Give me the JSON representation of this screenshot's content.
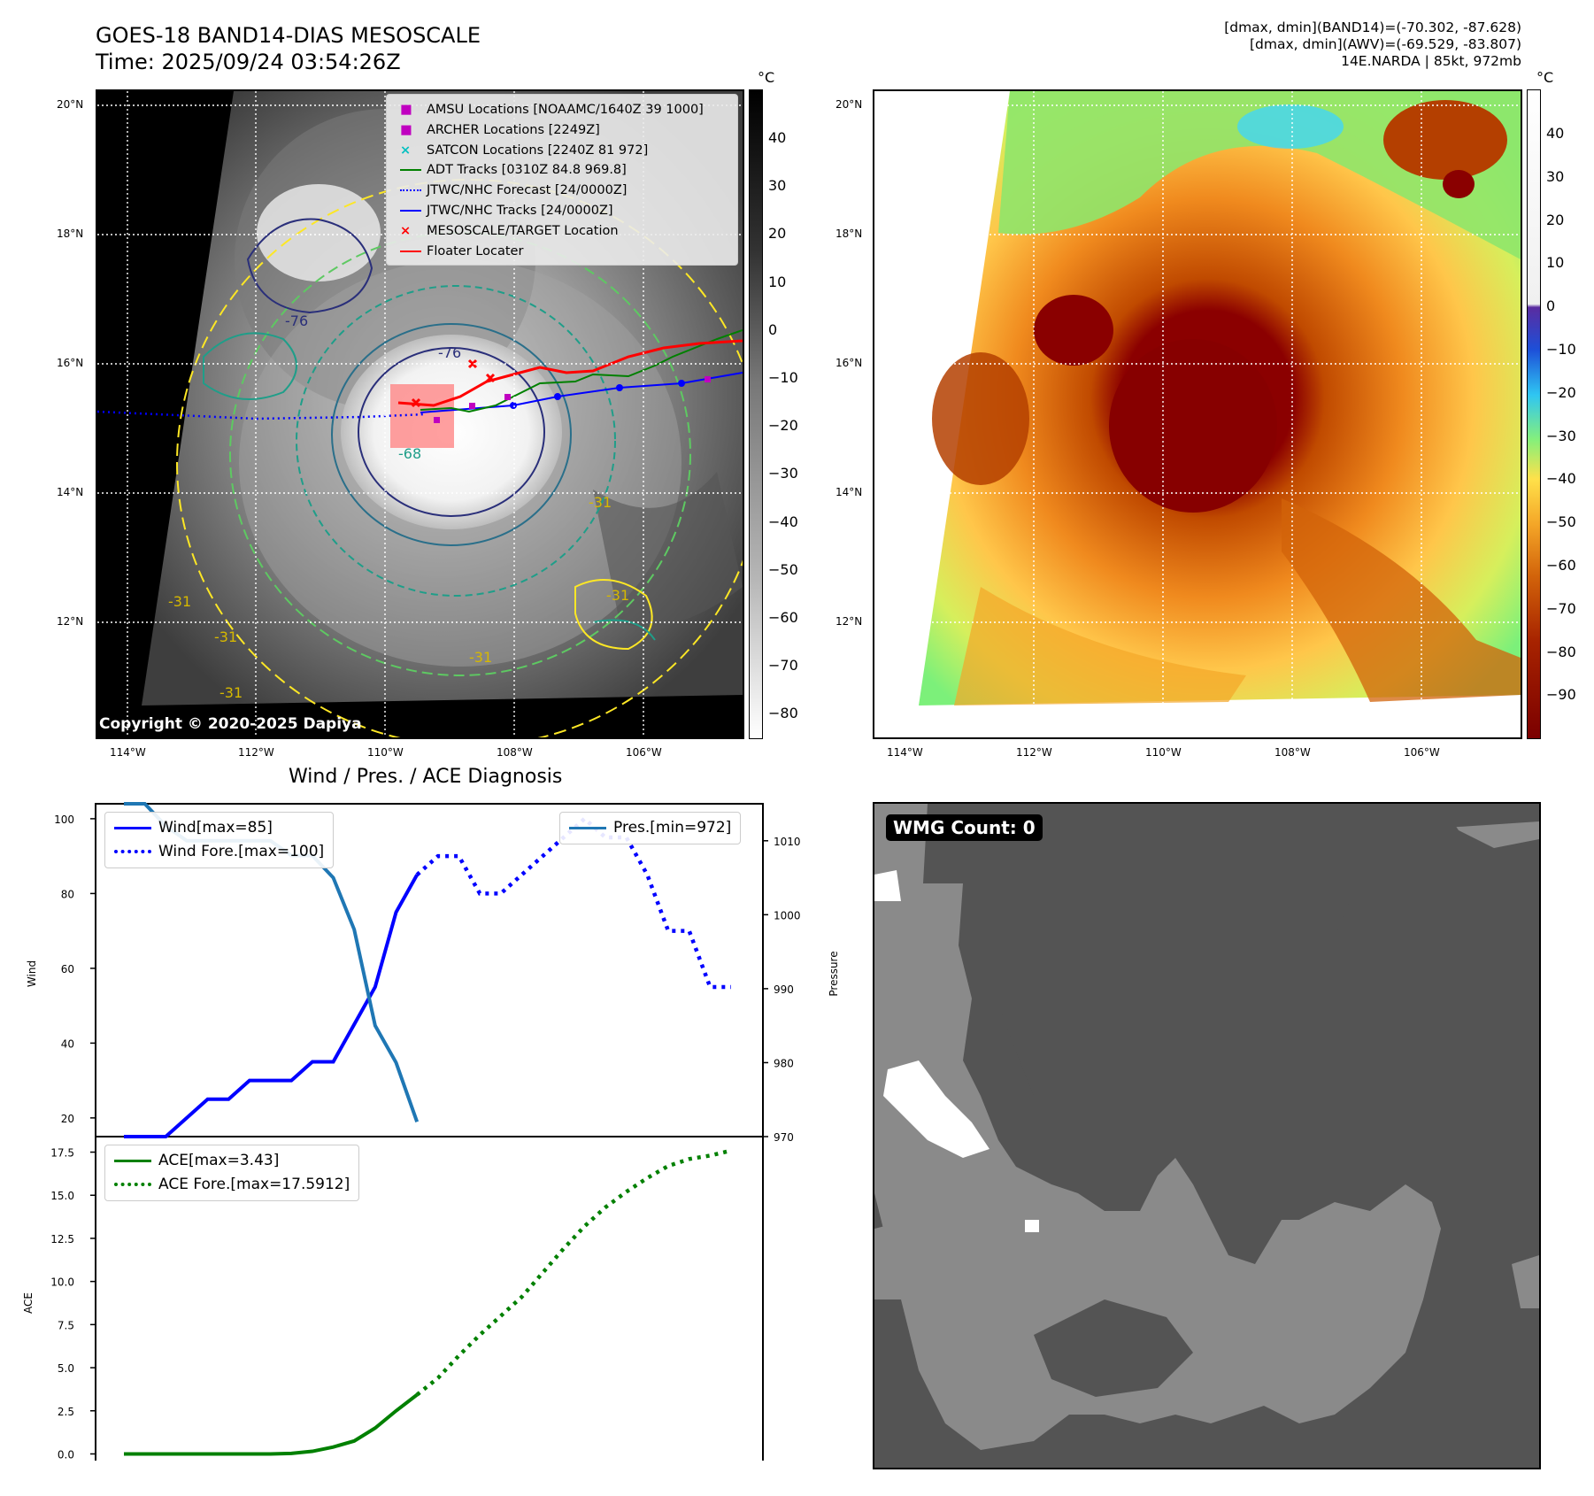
{
  "header": {
    "title": "GOES-18 BAND14-DIAS MESOSCALE",
    "time": "Time: 2025/09/24 03:54:26Z",
    "info_line1": "[dmax, dmin](BAND14)=(-70.302, -87.628)",
    "info_line2": "[dmax, dmin](AWV)=(-69.529, -83.807)",
    "info_line3": "14E.NARDA | 85kt, 972mb"
  },
  "map_axes": {
    "lat_labels": [
      "20°N",
      "18°N",
      "16°N",
      "14°N",
      "12°N"
    ],
    "lon_labels": [
      "114°W",
      "112°W",
      "110°W",
      "108°W",
      "106°W"
    ]
  },
  "ir_panel": {
    "copyright": "Copyright © 2020-2025 Dapiya",
    "colorbar_unit": "°C",
    "colorbar_ticks": [
      "40",
      "30",
      "20",
      "10",
      "0",
      "−10",
      "−20",
      "−30",
      "−40",
      "−50",
      "−60",
      "−70",
      "−80"
    ],
    "contour_labels": [
      "-76",
      "-76",
      "-31",
      "-31",
      "-31",
      "-31",
      "-31",
      "-31",
      "-68"
    ],
    "legend": [
      {
        "label": "AMSU Locations [NOAAMC/1640Z 39 1000]",
        "color": "#c000c0",
        "marker": "square"
      },
      {
        "label": "ARCHER Locations [2249Z]",
        "color": "#c000c0",
        "marker": "square"
      },
      {
        "label": "SATCON Locations [2240Z 81 972]",
        "color": "#00c0c0",
        "marker": "x"
      },
      {
        "label": "ADT Tracks [0310Z 84.8 969.8]",
        "color": "#008000",
        "marker": "line"
      },
      {
        "label": "JTWC/NHC Forecast [24/0000Z]",
        "color": "#0000ff",
        "marker": "dotted"
      },
      {
        "label": "JTWC/NHC Tracks [24/0000Z]",
        "color": "#0000ff",
        "marker": "line-dot"
      },
      {
        "label": "MESOSCALE/TARGET Location",
        "color": "#ff0000",
        "marker": "x"
      },
      {
        "label": "Floater Locater",
        "color": "#ff0000",
        "marker": "line"
      }
    ]
  },
  "awv_panel": {
    "colorbar_unit": "°C",
    "colorbar_ticks": [
      "40",
      "30",
      "20",
      "10",
      "0",
      "−10",
      "−20",
      "−30",
      "−40",
      "−50",
      "−60",
      "−70",
      "−80",
      "−90"
    ]
  },
  "wmg_panel": {
    "label": "WMG Count: 0"
  },
  "colors": {
    "wind": "#0000ff",
    "pressure": "#1f77b4",
    "ace": "#008000",
    "wmg_dark": "#545454",
    "wmg_mid": "#8a8a8a"
  },
  "chart_data": [
    {
      "type": "line",
      "title": "Wind / Pres. / ACE Diagnosis",
      "ylabel": "Wind",
      "ylabel_right": "Pressure",
      "ylim": [
        15,
        104
      ],
      "ylim_right": [
        970,
        1015
      ],
      "yticks": [
        "100",
        "80",
        "60",
        "40",
        "20"
      ],
      "yticks_right": [
        "1010",
        "1000",
        "990",
        "980",
        "970"
      ],
      "series": [
        {
          "name": "Wind[max=85]",
          "axis": "left",
          "style": "solid",
          "x": [
            0,
            1,
            2,
            3,
            4,
            5,
            6,
            7,
            8,
            9,
            10,
            11,
            12,
            13,
            14
          ],
          "values": [
            15,
            15,
            15,
            20,
            25,
            25,
            30,
            30,
            30,
            35,
            35,
            45,
            55,
            75,
            85
          ]
        },
        {
          "name": "Wind Fore.[max=100]",
          "axis": "left",
          "style": "dotted",
          "x": [
            14,
            15,
            16,
            17,
            18,
            19,
            20,
            21,
            22,
            23,
            24,
            25,
            26,
            27,
            28,
            29
          ],
          "values": [
            85,
            90,
            90,
            80,
            80,
            85,
            90,
            95,
            100,
            95,
            95,
            85,
            70,
            70,
            55,
            55
          ]
        },
        {
          "name": "Pres.[min=972]",
          "axis": "right",
          "style": "solid",
          "x": [
            0,
            1,
            2,
            3,
            4,
            5,
            6,
            7,
            8,
            9,
            10,
            11,
            12,
            13,
            14
          ],
          "values": [
            1015,
            1015,
            1012,
            1010,
            1010,
            1010,
            1010,
            1010,
            1008,
            1008,
            1005,
            998,
            985,
            980,
            972
          ]
        }
      ]
    },
    {
      "type": "line",
      "ylabel": "ACE",
      "ylim": [
        -0.9,
        18.4
      ],
      "yticks": [
        "17.5",
        "15.0",
        "12.5",
        "10.0",
        "7.5",
        "5.0",
        "2.5",
        "0.0"
      ],
      "series": [
        {
          "name": "ACE[max=3.43]",
          "style": "solid",
          "x": [
            0,
            1,
            2,
            3,
            4,
            5,
            6,
            7,
            8,
            9,
            10,
            11,
            12,
            13,
            14
          ],
          "values": [
            0,
            0,
            0,
            0,
            0,
            0,
            0,
            0,
            0.03,
            0.15,
            0.4,
            0.75,
            1.5,
            2.5,
            3.43
          ]
        },
        {
          "name": "ACE Fore.[max=17.5912]",
          "style": "dotted",
          "x": [
            14,
            15,
            16,
            17,
            18,
            19,
            20,
            21,
            22,
            23,
            24,
            25,
            26,
            27,
            28,
            29
          ],
          "values": [
            3.43,
            4.4,
            5.7,
            6.9,
            8.0,
            9.1,
            10.5,
            11.9,
            13.2,
            14.3,
            15.2,
            16.0,
            16.7,
            17.1,
            17.3,
            17.59
          ]
        }
      ]
    }
  ]
}
